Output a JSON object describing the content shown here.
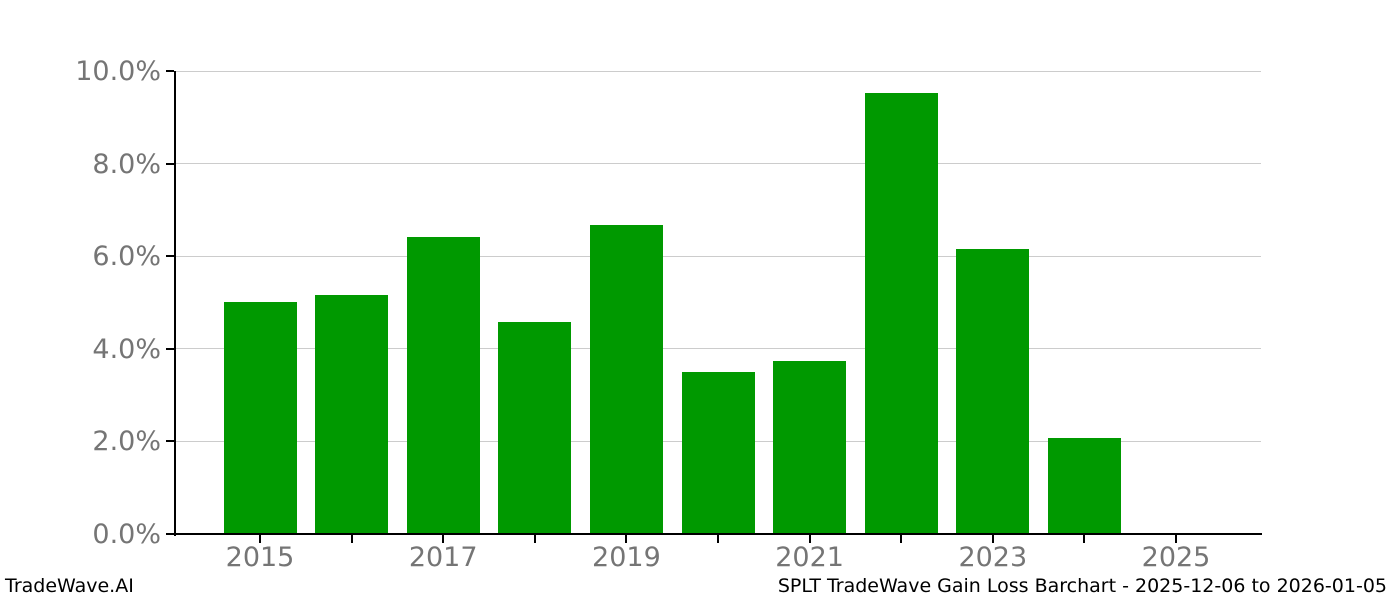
{
  "branding": {
    "watermark": "TradeWave.AI"
  },
  "footer": {
    "title": "SPLT TradeWave Gain Loss Barchart - 2025-12-06 to 2026-01-05"
  },
  "chart_data": {
    "type": "bar",
    "categories": [
      "2015",
      "2016",
      "2017",
      "2018",
      "2019",
      "2020",
      "2021",
      "2022",
      "2023",
      "2024",
      "2025"
    ],
    "values": [
      5.02,
      5.17,
      6.41,
      4.58,
      6.68,
      3.5,
      3.74,
      9.53,
      6.16,
      2.07,
      0.0
    ],
    "title": "SPLT TradeWave Gain Loss Barchart - 2025-12-06 to 2026-01-05",
    "xlabel": "",
    "ylabel": "",
    "ylim": [
      0,
      10
    ],
    "ytick_values": [
      0,
      2,
      4,
      6,
      8,
      10
    ],
    "ytick_labels": [
      "0.0%",
      "2.0%",
      "4.0%",
      "6.0%",
      "8.0%",
      "10.0%"
    ],
    "xtick_visible_labels": [
      "2015",
      "2017",
      "2019",
      "2021",
      "2023",
      "2025"
    ],
    "grid": true,
    "legend": "none",
    "bar_color": "#009900",
    "gridline_color": "#cccccc",
    "tick_label_color": "#757575",
    "axis_color": "#000000"
  }
}
